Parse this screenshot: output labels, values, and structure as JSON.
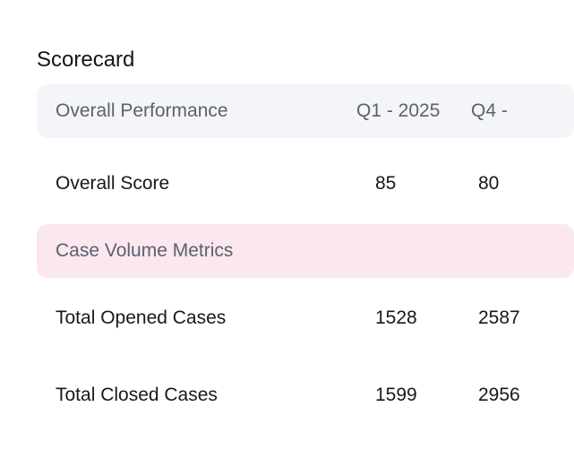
{
  "scorecard": {
    "title": "Scorecard",
    "header": {
      "label": "Overall Performance",
      "col1": "Q1 - 2025",
      "col2": "Q4 -"
    },
    "overall": {
      "label": "Overall Score",
      "q1": "85",
      "q4": "80"
    },
    "section": {
      "label": "Case Volume Metrics"
    },
    "opened": {
      "label": "Total Opened Cases",
      "q1": "1528",
      "q4": "2587"
    },
    "closed": {
      "label": "Total Closed Cases",
      "q1": "1599",
      "q4": "2956"
    }
  }
}
